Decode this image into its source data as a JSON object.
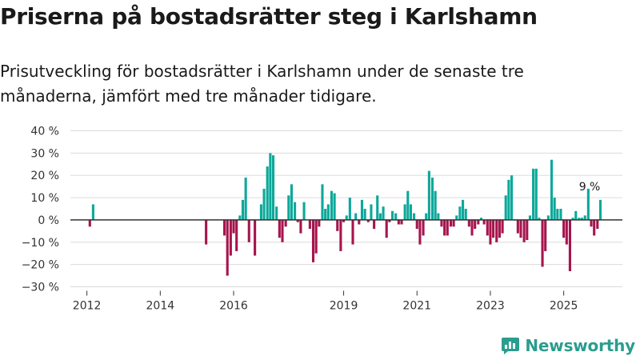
{
  "title": "Priserna på bostadsrätter steg i Karlshamn",
  "subtitle": "Prisutveckling för bostadsrätter i Karlshamn under de senaste tre månaderna, jämfört med tre månader tidigare.",
  "brand": "Newsworthy",
  "colors": {
    "positive": "#0ca89a",
    "negative": "#a6144d",
    "grid": "#dcdcdc",
    "zero": "#333333",
    "brand": "#2a9d8f"
  },
  "chart_data": {
    "type": "bar",
    "x_unit": "decimal year (monthly bars)",
    "ylim": [
      -30,
      40
    ],
    "yticks": [
      40,
      30,
      20,
      10,
      0,
      -10,
      -20,
      -30
    ],
    "ytick_labels": [
      "40 %",
      "30 %",
      "20 %",
      "10 %",
      "0 %",
      "−10 %",
      "−20 %",
      "−30 %"
    ],
    "xlim": [
      2011.55,
      2026.6
    ],
    "xticks": [
      2012,
      2014,
      2016,
      2019,
      2021,
      2023,
      2025
    ],
    "xtick_labels": [
      "2012",
      "2014",
      "2016",
      "2019",
      "2021",
      "2023",
      "2025"
    ],
    "annotation": {
      "label": "9 %",
      "x": 2025.75,
      "y": 9
    },
    "series": [
      {
        "name": "Prisutveckling",
        "points": [
          [
            2012.08,
            -3
          ],
          [
            2012.17,
            7
          ],
          [
            2015.25,
            -11
          ],
          [
            2015.75,
            -7
          ],
          [
            2015.83,
            -25
          ],
          [
            2015.92,
            -16
          ],
          [
            2016.0,
            -6
          ],
          [
            2016.08,
            -14
          ],
          [
            2016.17,
            2
          ],
          [
            2016.25,
            9
          ],
          [
            2016.33,
            19
          ],
          [
            2016.42,
            -10
          ],
          [
            2016.5,
            0
          ],
          [
            2016.58,
            -16
          ],
          [
            2016.67,
            0
          ],
          [
            2016.75,
            7
          ],
          [
            2016.83,
            14
          ],
          [
            2016.92,
            24
          ],
          [
            2017.0,
            30
          ],
          [
            2017.08,
            29
          ],
          [
            2017.17,
            6
          ],
          [
            2017.25,
            -8
          ],
          [
            2017.33,
            -10
          ],
          [
            2017.42,
            -3
          ],
          [
            2017.5,
            11
          ],
          [
            2017.58,
            16
          ],
          [
            2017.67,
            8
          ],
          [
            2017.75,
            -1
          ],
          [
            2017.83,
            -6
          ],
          [
            2017.92,
            8
          ],
          [
            2018.08,
            -4
          ],
          [
            2018.17,
            -19
          ],
          [
            2018.25,
            -15
          ],
          [
            2018.33,
            -3
          ],
          [
            2018.42,
            16
          ],
          [
            2018.5,
            5
          ],
          [
            2018.58,
            7
          ],
          [
            2018.67,
            13
          ],
          [
            2018.75,
            12
          ],
          [
            2018.83,
            -5
          ],
          [
            2018.92,
            -14
          ],
          [
            2019.0,
            -1
          ],
          [
            2019.08,
            2
          ],
          [
            2019.17,
            10
          ],
          [
            2019.25,
            -11
          ],
          [
            2019.33,
            3
          ],
          [
            2019.42,
            -2
          ],
          [
            2019.5,
            9
          ],
          [
            2019.58,
            5
          ],
          [
            2019.67,
            -1
          ],
          [
            2019.75,
            7
          ],
          [
            2019.83,
            -4
          ],
          [
            2019.92,
            11
          ],
          [
            2020.0,
            3
          ],
          [
            2020.08,
            6
          ],
          [
            2020.17,
            -8
          ],
          [
            2020.25,
            -1
          ],
          [
            2020.33,
            4
          ],
          [
            2020.42,
            3
          ],
          [
            2020.5,
            -2
          ],
          [
            2020.58,
            -2
          ],
          [
            2020.67,
            7
          ],
          [
            2020.75,
            13
          ],
          [
            2020.83,
            7
          ],
          [
            2020.92,
            3
          ],
          [
            2021.0,
            -4
          ],
          [
            2021.08,
            -11
          ],
          [
            2021.17,
            -7
          ],
          [
            2021.25,
            3
          ],
          [
            2021.33,
            22
          ],
          [
            2021.42,
            19
          ],
          [
            2021.5,
            13
          ],
          [
            2021.58,
            3
          ],
          [
            2021.67,
            -3
          ],
          [
            2021.75,
            -7
          ],
          [
            2021.83,
            -7
          ],
          [
            2021.92,
            -3
          ],
          [
            2022.0,
            -3
          ],
          [
            2022.08,
            2
          ],
          [
            2022.17,
            6
          ],
          [
            2022.25,
            9
          ],
          [
            2022.33,
            5
          ],
          [
            2022.42,
            -3
          ],
          [
            2022.5,
            -7
          ],
          [
            2022.58,
            -4
          ],
          [
            2022.67,
            -2
          ],
          [
            2022.75,
            1
          ],
          [
            2022.83,
            -2
          ],
          [
            2022.92,
            -7
          ],
          [
            2023.0,
            -11
          ],
          [
            2023.08,
            -8
          ],
          [
            2023.17,
            -10
          ],
          [
            2023.25,
            -8
          ],
          [
            2023.33,
            -6
          ],
          [
            2023.42,
            11
          ],
          [
            2023.5,
            18
          ],
          [
            2023.58,
            20
          ],
          [
            2023.67,
            0
          ],
          [
            2023.75,
            -6
          ],
          [
            2023.83,
            -8
          ],
          [
            2023.92,
            -10
          ],
          [
            2024.0,
            -9
          ],
          [
            2024.08,
            2
          ],
          [
            2024.17,
            23
          ],
          [
            2024.25,
            23
          ],
          [
            2024.33,
            1
          ],
          [
            2024.42,
            -21
          ],
          [
            2024.5,
            -14
          ],
          [
            2024.58,
            2
          ],
          [
            2024.67,
            27
          ],
          [
            2024.75,
            10
          ],
          [
            2024.83,
            5
          ],
          [
            2024.92,
            5
          ],
          [
            2025.0,
            -8
          ],
          [
            2025.08,
            -11
          ],
          [
            2025.17,
            -23
          ],
          [
            2025.25,
            1
          ],
          [
            2025.33,
            4
          ],
          [
            2025.42,
            1
          ],
          [
            2025.5,
            1
          ],
          [
            2025.58,
            2
          ],
          [
            2025.67,
            14
          ],
          [
            2025.75,
            -3
          ],
          [
            2025.83,
            -7
          ],
          [
            2025.92,
            -4
          ],
          [
            2026.0,
            9
          ]
        ]
      }
    ]
  }
}
